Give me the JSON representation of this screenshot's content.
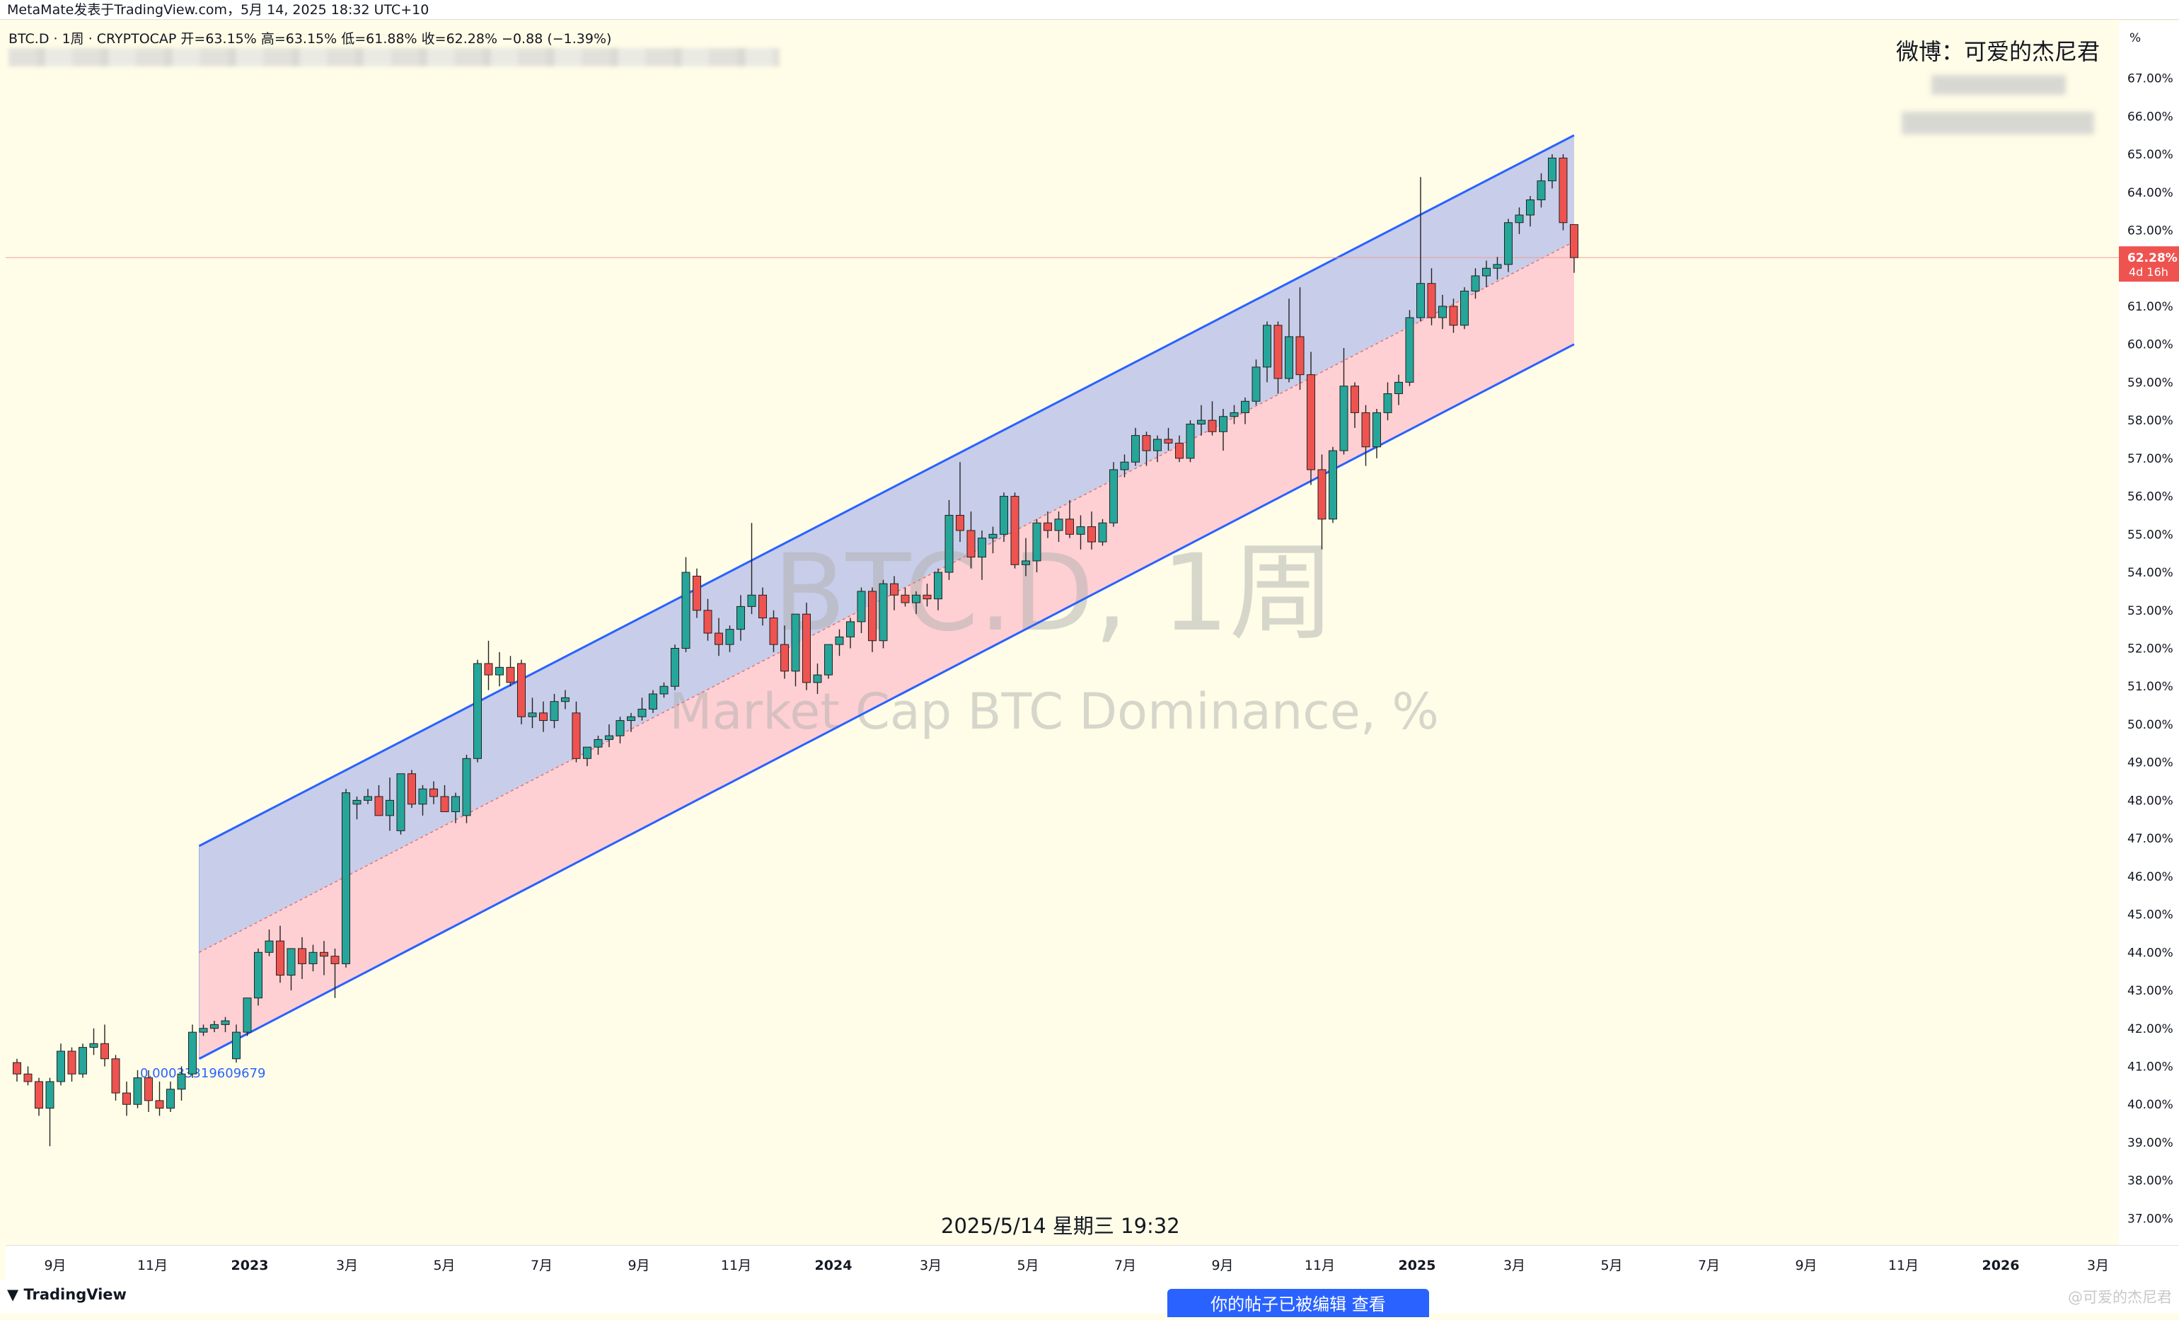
{
  "topbar": {
    "text": "MetaMate发表于TradingView.com，5月 14, 2025 18:32 UTC+10"
  },
  "legend": {
    "text": "BTC.D · 1周 · CRYPTOCAP  开=63.15%  高=63.15%  低=61.88%  收=62.28%  −0.88 (−1.39%)"
  },
  "author": "微博：可爱的杰尼君",
  "watermark": {
    "symbol": "BTC.D, 1周",
    "name": "Market Cap BTC Dominance, %"
  },
  "date_caption": "2025/5/14 星期三 19:32",
  "channel_label": "0.00033319609679",
  "price_unit": "%",
  "current_price": {
    "value": "62.28%",
    "countdown": "4d 16h"
  },
  "footer": {
    "brand": "TradingView",
    "notify": "你的帖子已被编辑    查看",
    "source": "@可爱的杰尼君"
  },
  "colors": {
    "up": "#26a69a",
    "down": "#ef5350",
    "channel_line": "#2962ff",
    "upper_fill": "#c5cae9",
    "lower_fill": "#ffcdd2",
    "price_tag": "#ef5350"
  },
  "chart_data": {
    "type": "candlestick",
    "y_unit": "%",
    "ylim": [
      36.3,
      68.5
    ],
    "y_ticks": [
      "37.00%",
      "38.00%",
      "39.00%",
      "40.00%",
      "41.00%",
      "42.00%",
      "43.00%",
      "44.00%",
      "45.00%",
      "46.00%",
      "47.00%",
      "48.00%",
      "49.00%",
      "50.00%",
      "51.00%",
      "52.00%",
      "53.00%",
      "54.00%",
      "55.00%",
      "56.00%",
      "57.00%",
      "58.00%",
      "59.00%",
      "60.00%",
      "61.00%",
      "62.00%",
      "63.00%",
      "64.00%",
      "65.00%",
      "66.00%",
      "67.00%"
    ],
    "x_ticks": [
      "9月",
      "11月",
      "2023",
      "3月",
      "5月",
      "7月",
      "9月",
      "11月",
      "2024",
      "3月",
      "5月",
      "7月",
      "9月",
      "11月",
      "2025",
      "3月",
      "5月",
      "7月",
      "9月",
      "11月",
      "2026",
      "3月",
      "5月"
    ],
    "channel": {
      "start": "2022-12",
      "end": "2025-05",
      "upper": [
        46.8,
        65.5
      ],
      "mid": [
        44.0,
        62.7
      ],
      "lower": [
        41.2,
        60.0
      ]
    },
    "candles": [
      [
        41.1,
        41.2,
        40.6,
        40.8
      ],
      [
        40.8,
        41.0,
        40.5,
        40.6
      ],
      [
        40.6,
        40.7,
        39.7,
        39.9
      ],
      [
        39.9,
        40.7,
        38.9,
        40.6
      ],
      [
        40.6,
        41.6,
        40.5,
        41.4
      ],
      [
        41.4,
        41.5,
        40.6,
        40.8
      ],
      [
        40.8,
        41.6,
        40.7,
        41.5
      ],
      [
        41.5,
        42.0,
        41.3,
        41.6
      ],
      [
        41.6,
        42.1,
        41.0,
        41.2
      ],
      [
        41.2,
        41.3,
        40.1,
        40.3
      ],
      [
        40.3,
        40.6,
        39.7,
        40.0
      ],
      [
        40.0,
        40.9,
        39.9,
        40.7
      ],
      [
        40.7,
        40.9,
        39.8,
        40.1
      ],
      [
        40.1,
        40.6,
        39.7,
        39.9
      ],
      [
        39.9,
        40.6,
        39.8,
        40.4
      ],
      [
        40.4,
        41.0,
        40.1,
        40.8
      ],
      [
        40.8,
        42.1,
        40.7,
        41.9
      ],
      [
        41.9,
        42.1,
        41.8,
        42.0
      ],
      [
        42.0,
        42.2,
        41.9,
        42.1
      ],
      [
        42.1,
        42.3,
        41.9,
        42.2
      ],
      [
        41.2,
        42.1,
        41.1,
        41.9
      ],
      [
        41.9,
        42.8,
        41.8,
        42.8
      ],
      [
        42.8,
        44.1,
        42.6,
        44.0
      ],
      [
        44.0,
        44.6,
        43.9,
        44.3
      ],
      [
        44.3,
        44.7,
        43.2,
        43.4
      ],
      [
        43.4,
        44.1,
        43.0,
        44.1
      ],
      [
        44.1,
        44.4,
        43.3,
        43.7
      ],
      [
        43.7,
        44.2,
        43.5,
        44.0
      ],
      [
        44.0,
        44.3,
        43.4,
        43.9
      ],
      [
        43.9,
        44.1,
        42.8,
        43.7
      ],
      [
        43.7,
        48.3,
        43.6,
        48.2
      ],
      [
        47.9,
        48.1,
        47.5,
        48.0
      ],
      [
        48.0,
        48.3,
        47.9,
        48.1
      ],
      [
        48.1,
        48.4,
        47.6,
        47.6
      ],
      [
        47.6,
        48.6,
        47.2,
        48.0
      ],
      [
        47.2,
        48.7,
        47.1,
        48.7
      ],
      [
        48.7,
        48.8,
        47.8,
        47.9
      ],
      [
        47.9,
        48.4,
        47.6,
        48.3
      ],
      [
        48.3,
        48.5,
        47.9,
        48.1
      ],
      [
        48.1,
        48.4,
        47.7,
        47.7
      ],
      [
        47.7,
        48.2,
        47.4,
        48.1
      ],
      [
        47.6,
        49.2,
        47.4,
        49.1
      ],
      [
        49.1,
        51.7,
        49.0,
        51.6
      ],
      [
        51.6,
        52.2,
        50.9,
        51.3
      ],
      [
        51.3,
        51.9,
        51.0,
        51.5
      ],
      [
        51.5,
        51.8,
        51.0,
        51.1
      ],
      [
        51.6,
        51.7,
        50.0,
        50.2
      ],
      [
        50.2,
        50.7,
        49.9,
        50.3
      ],
      [
        50.3,
        50.6,
        49.8,
        50.1
      ],
      [
        50.1,
        50.8,
        49.9,
        50.6
      ],
      [
        50.6,
        50.9,
        50.4,
        50.7
      ],
      [
        50.3,
        50.6,
        49.0,
        49.1
      ],
      [
        49.1,
        49.4,
        48.9,
        49.4
      ],
      [
        49.4,
        49.7,
        49.2,
        49.6
      ],
      [
        49.6,
        50.0,
        49.4,
        49.7
      ],
      [
        49.7,
        50.2,
        49.5,
        50.1
      ],
      [
        50.1,
        50.3,
        49.8,
        50.2
      ],
      [
        50.2,
        50.7,
        50.1,
        50.4
      ],
      [
        50.4,
        50.9,
        50.3,
        50.8
      ],
      [
        50.8,
        51.1,
        50.7,
        51.0
      ],
      [
        51.0,
        52.1,
        50.9,
        52.0
      ],
      [
        52.0,
        54.4,
        51.9,
        54.0
      ],
      [
        53.9,
        54.1,
        52.8,
        53.0
      ],
      [
        53.0,
        53.3,
        52.2,
        52.4
      ],
      [
        52.4,
        52.8,
        51.8,
        52.1
      ],
      [
        52.1,
        52.6,
        51.9,
        52.5
      ],
      [
        52.5,
        53.4,
        52.2,
        53.1
      ],
      [
        53.1,
        55.3,
        52.9,
        53.4
      ],
      [
        53.4,
        53.6,
        52.6,
        52.8
      ],
      [
        52.8,
        53.0,
        51.9,
        52.1
      ],
      [
        52.1,
        52.6,
        51.2,
        51.4
      ],
      [
        51.4,
        52.9,
        51.0,
        52.9
      ],
      [
        52.9,
        53.2,
        50.9,
        51.1
      ],
      [
        51.1,
        51.6,
        50.8,
        51.3
      ],
      [
        51.3,
        52.0,
        51.2,
        52.1
      ],
      [
        52.1,
        52.5,
        51.8,
        52.3
      ],
      [
        52.3,
        52.8,
        52.0,
        52.7
      ],
      [
        52.7,
        53.6,
        52.4,
        53.5
      ],
      [
        53.5,
        53.6,
        51.9,
        52.2
      ],
      [
        52.2,
        53.8,
        52.0,
        53.7
      ],
      [
        53.7,
        53.9,
        53.0,
        53.4
      ],
      [
        53.4,
        53.6,
        53.1,
        53.2
      ],
      [
        53.2,
        53.5,
        52.9,
        53.4
      ],
      [
        53.4,
        53.7,
        53.1,
        53.3
      ],
      [
        53.3,
        54.1,
        53.0,
        54.0
      ],
      [
        54.0,
        55.9,
        53.8,
        55.5
      ],
      [
        55.5,
        56.9,
        54.8,
        55.1
      ],
      [
        55.1,
        55.6,
        54.1,
        54.4
      ],
      [
        54.4,
        55.1,
        53.8,
        54.9
      ],
      [
        54.9,
        55.2,
        54.5,
        55.0
      ],
      [
        55.0,
        56.1,
        54.8,
        56.0
      ],
      [
        56.0,
        56.1,
        54.1,
        54.2
      ],
      [
        54.2,
        54.9,
        53.9,
        54.3
      ],
      [
        54.3,
        55.4,
        54.0,
        55.3
      ],
      [
        55.3,
        55.6,
        54.9,
        55.1
      ],
      [
        55.1,
        55.6,
        54.8,
        55.4
      ],
      [
        55.4,
        55.9,
        54.9,
        55.0
      ],
      [
        55.0,
        55.5,
        54.6,
        55.2
      ],
      [
        55.2,
        55.6,
        54.6,
        54.8
      ],
      [
        54.8,
        55.4,
        54.7,
        55.3
      ],
      [
        55.3,
        56.9,
        55.2,
        56.7
      ],
      [
        56.7,
        57.1,
        56.5,
        56.9
      ],
      [
        56.9,
        57.8,
        56.8,
        57.6
      ],
      [
        57.6,
        57.7,
        56.8,
        57.2
      ],
      [
        57.2,
        57.6,
        56.9,
        57.5
      ],
      [
        57.5,
        57.8,
        57.2,
        57.4
      ],
      [
        57.4,
        57.6,
        56.9,
        57.0
      ],
      [
        57.0,
        58.0,
        56.9,
        57.9
      ],
      [
        57.9,
        58.4,
        57.6,
        58.0
      ],
      [
        58.0,
        58.5,
        57.6,
        57.7
      ],
      [
        57.7,
        58.3,
        57.2,
        58.1
      ],
      [
        58.1,
        58.4,
        57.9,
        58.2
      ],
      [
        58.2,
        58.6,
        57.9,
        58.5
      ],
      [
        58.5,
        59.6,
        58.4,
        59.4
      ],
      [
        59.4,
        60.6,
        59.0,
        60.5
      ],
      [
        60.5,
        60.6,
        58.7,
        59.1
      ],
      [
        59.1,
        61.2,
        59.0,
        60.2
      ],
      [
        60.2,
        61.5,
        58.8,
        59.2
      ],
      [
        59.2,
        59.8,
        56.3,
        56.7
      ],
      [
        56.7,
        57.1,
        54.6,
        55.4
      ],
      [
        55.4,
        57.3,
        55.3,
        57.2
      ],
      [
        57.2,
        59.9,
        57.1,
        58.9
      ],
      [
        58.9,
        59.0,
        57.8,
        58.2
      ],
      [
        58.2,
        58.4,
        56.8,
        57.3
      ],
      [
        57.3,
        58.3,
        57.0,
        58.2
      ],
      [
        58.2,
        59.0,
        58.0,
        58.7
      ],
      [
        58.7,
        59.2,
        58.4,
        59.0
      ],
      [
        59.0,
        60.9,
        58.9,
        60.7
      ],
      [
        60.7,
        64.4,
        60.6,
        61.6
      ],
      [
        61.6,
        62.0,
        60.5,
        60.7
      ],
      [
        60.7,
        61.3,
        60.4,
        61.0
      ],
      [
        61.0,
        61.2,
        60.3,
        60.5
      ],
      [
        60.5,
        61.5,
        60.4,
        61.4
      ],
      [
        61.4,
        62.0,
        61.2,
        61.8
      ],
      [
        61.8,
        62.2,
        61.5,
        62.0
      ],
      [
        62.0,
        62.3,
        61.7,
        62.1
      ],
      [
        62.1,
        63.3,
        61.9,
        63.2
      ],
      [
        63.2,
        63.6,
        62.9,
        63.4
      ],
      [
        63.4,
        63.9,
        63.1,
        63.8
      ],
      [
        63.8,
        64.5,
        63.6,
        64.3
      ],
      [
        64.3,
        65.0,
        64.1,
        64.9
      ],
      [
        64.9,
        65.0,
        63.0,
        63.2
      ],
      [
        63.15,
        63.15,
        61.88,
        62.28
      ]
    ]
  }
}
